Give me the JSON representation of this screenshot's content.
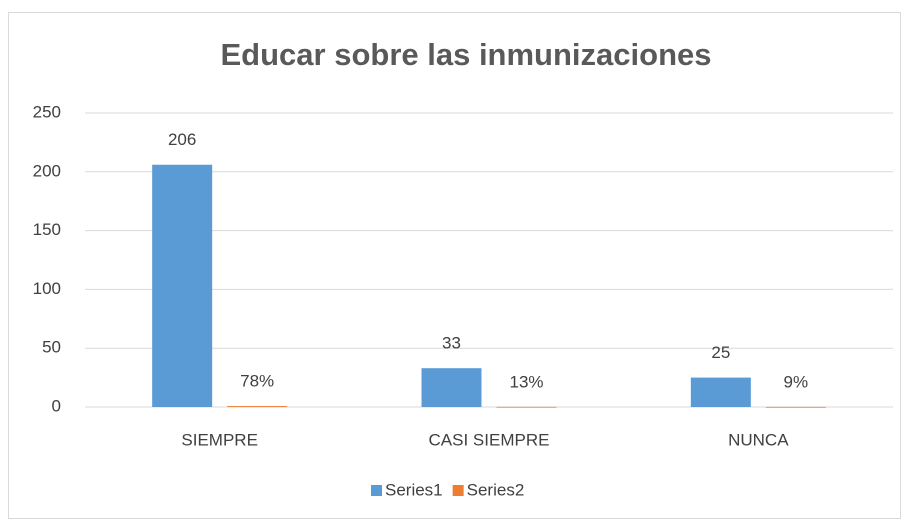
{
  "chart_data": {
    "type": "bar",
    "title": "Educar sobre las inmunizaciones",
    "categories": [
      "SIEMPRE",
      "CASI SIEMPRE",
      "NUNCA"
    ],
    "series": [
      {
        "name": "Series1",
        "color": "#5b9bd5",
        "values": [
          206,
          33,
          25
        ]
      },
      {
        "name": "Series2",
        "color": "#ed7d31",
        "values": [
          0.78,
          0.13,
          0.09
        ],
        "value_labels": [
          "78%",
          "13%",
          "9%"
        ]
      }
    ],
    "ylim": [
      0,
      250
    ],
    "yticks": [
      0,
      50,
      100,
      150,
      200,
      250
    ],
    "grid": true,
    "legend": "bottom"
  }
}
